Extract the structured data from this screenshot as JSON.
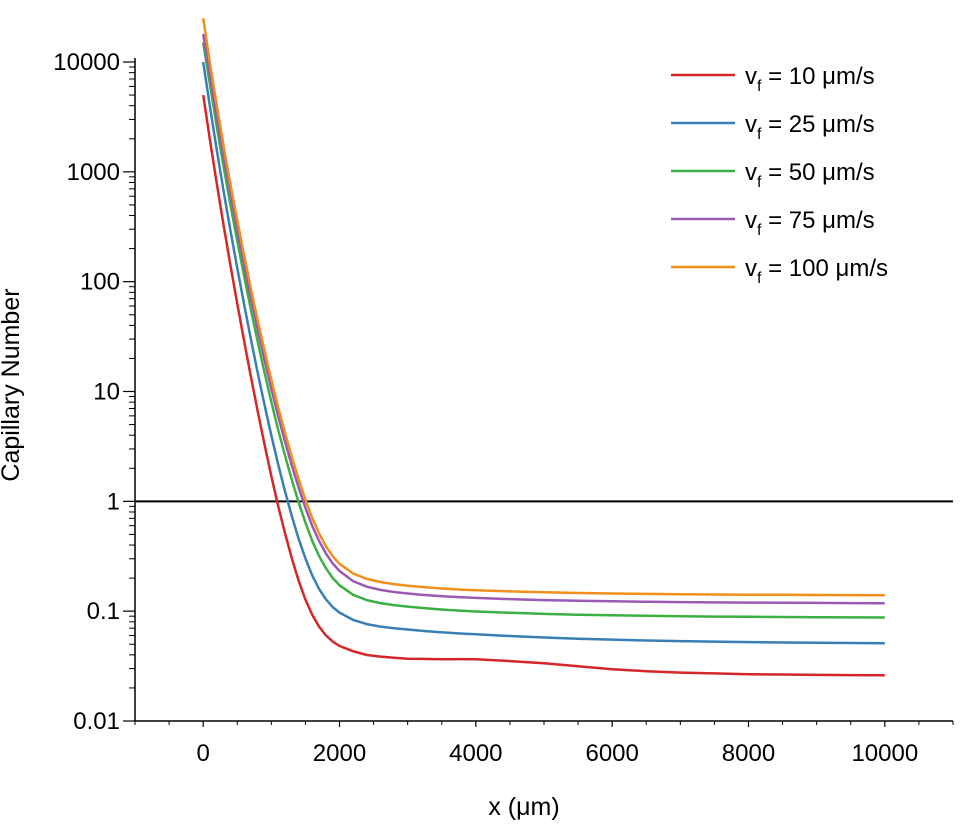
{
  "chart_data": {
    "type": "line",
    "title": "",
    "xlabel": "x (μm)",
    "ylabel": "Capillary Number",
    "xlim": [
      -1000,
      11000
    ],
    "ylim": [
      0.01,
      10000
    ],
    "yscale": "log",
    "grid": false,
    "legend_position": "top-right",
    "x_ticks": [
      0,
      2000,
      4000,
      6000,
      8000,
      10000
    ],
    "x_tick_labels": [
      "0",
      "2000",
      "4000",
      "6000",
      "8000",
      "10000"
    ],
    "y_ticks": [
      0.01,
      0.1,
      1,
      10,
      100,
      1000,
      10000
    ],
    "y_tick_labels": [
      "0.01",
      "0.1",
      "1",
      "10",
      "100",
      "1000",
      "10000"
    ],
    "reference_line": {
      "y": 1,
      "color": "#000000"
    },
    "series": [
      {
        "legend_main": "v",
        "legend_sub": "f",
        "legend_rest": " = 10 μm/s",
        "color": "#d62728",
        "x": [
          0,
          100,
          200,
          300,
          400,
          500,
          600,
          700,
          800,
          900,
          1000,
          1100,
          1200,
          1300,
          1400,
          1500,
          1600,
          1700,
          1800,
          1900,
          2000,
          2200,
          2400,
          2600,
          2800,
          3000,
          3200,
          3400,
          3600,
          3800,
          4000,
          4500,
          5000,
          5500,
          6000,
          6500,
          7000,
          7500,
          8000,
          8500,
          9000,
          9500,
          10000
        ],
        "y": [
          5000,
          1936,
          780,
          326,
          141.5,
          62.9,
          28.9,
          13.6,
          6.6,
          3.3,
          1.701,
          0.913,
          0.513,
          0.303,
          0.19,
          0.1276,
          0.0926,
          0.0724,
          0.0602,
          0.0529,
          0.0482,
          0.0432,
          0.0399,
          0.0386,
          0.0376,
          0.0369,
          0.0368,
          0.0366,
          0.0365,
          0.0366,
          0.0365,
          0.0351,
          0.0335,
          0.0315,
          0.0296,
          0.0284,
          0.0276,
          0.0271,
          0.0267,
          0.0265,
          0.0263,
          0.0262,
          0.0261
        ]
      },
      {
        "legend_main": "v",
        "legend_sub": "f",
        "legend_rest": " = 25 μm/s",
        "color": "#3a7fb4",
        "x": [
          0,
          100,
          200,
          300,
          400,
          500,
          600,
          700,
          800,
          900,
          1000,
          1100,
          1200,
          1300,
          1400,
          1500,
          1600,
          1700,
          1800,
          1900,
          2000,
          2200,
          2400,
          2600,
          2800,
          3000,
          3200,
          3400,
          3600,
          3800,
          4000,
          4500,
          5000,
          5500,
          6000,
          6500,
          7000,
          7500,
          8000,
          8500,
          9000,
          9500,
          10000
        ],
        "y": [
          10000,
          3900,
          1580,
          668,
          293,
          133,
          62.1,
          29.9,
          14.8,
          7.57,
          3.99,
          2.18,
          1.236,
          0.733,
          0.457,
          0.302,
          0.2119,
          0.1593,
          0.1283,
          0.109,
          0.0971,
          0.0832,
          0.0762,
          0.0724,
          0.0699,
          0.0681,
          0.0663,
          0.0648,
          0.0636,
          0.0625,
          0.0616,
          0.0594,
          0.0576,
          0.0562,
          0.0551,
          0.0541,
          0.0534,
          0.0528,
          0.0523,
          0.0519,
          0.0516,
          0.0513,
          0.0511
        ]
      },
      {
        "legend_main": "v",
        "legend_sub": "f",
        "legend_rest": " = 50 μm/s",
        "color": "#3cb043",
        "x": [
          0,
          100,
          200,
          300,
          400,
          500,
          600,
          700,
          800,
          900,
          1000,
          1100,
          1200,
          1300,
          1400,
          1500,
          1600,
          1700,
          1800,
          1900,
          2000,
          2200,
          2400,
          2600,
          2800,
          3000,
          3200,
          3400,
          3600,
          3800,
          4000,
          4500,
          5000,
          5500,
          6000,
          6500,
          7000,
          7500,
          8000,
          8500,
          9000,
          9500,
          10000
        ],
        "y": [
          15000,
          6200,
          2570,
          1112,
          502,
          234,
          112.8,
          55.6,
          28.4,
          14.9,
          8.07,
          4.51,
          2.61,
          1.57,
          0.983,
          0.64,
          0.437,
          0.318,
          0.246,
          0.2006,
          0.172,
          0.1408,
          0.1262,
          0.1185,
          0.1136,
          0.11,
          0.107,
          0.1046,
          0.1025,
          0.1008,
          0.0994,
          0.0966,
          0.0945,
          0.0929,
          0.0917,
          0.0907,
          0.0899,
          0.0893,
          0.0888,
          0.0884,
          0.0881,
          0.0878,
          0.0876
        ]
      },
      {
        "legend_main": "v",
        "legend_sub": "f",
        "legend_rest": " = 75 μm/s",
        "color": "#9b59b6",
        "x": [
          0,
          100,
          200,
          300,
          400,
          500,
          600,
          700,
          800,
          900,
          1000,
          1100,
          1200,
          1300,
          1400,
          1500,
          1600,
          1700,
          1800,
          1900,
          2000,
          2200,
          2400,
          2600,
          2800,
          3000,
          3200,
          3400,
          3600,
          3800,
          4000,
          4500,
          5000,
          5500,
          6000,
          6500,
          7000,
          7500,
          8000,
          8500,
          9000,
          9500,
          10000
        ],
        "y": [
          18000,
          7500,
          3150,
          1375,
          626,
          294,
          143.0,
          71.0,
          36.6,
          19.4,
          10.6,
          5.98,
          3.5,
          2.12,
          1.336,
          0.875,
          0.599,
          0.435,
          0.335,
          0.272,
          0.232,
          0.1877,
          0.1671,
          0.1563,
          0.1496,
          0.1449,
          0.1412,
          0.1382,
          0.1357,
          0.1337,
          0.132,
          0.1287,
          0.1262,
          0.1243,
          0.1229,
          0.1218,
          0.1209,
          0.1202,
          0.1196,
          0.1192,
          0.1188,
          0.1185,
          0.1183
        ]
      },
      {
        "legend_main": "v",
        "legend_sub": "f",
        "legend_rest": " = 100 μm/s",
        "color": "#f28e1c",
        "x": [
          0,
          100,
          200,
          300,
          400,
          500,
          600,
          700,
          800,
          900,
          1000,
          1100,
          1200,
          1300,
          1400,
          1500,
          1600,
          1700,
          1800,
          1900,
          2000,
          2200,
          2400,
          2600,
          2800,
          3000,
          3200,
          3400,
          3600,
          3800,
          4000,
          4500,
          5000,
          5500,
          6000,
          6500,
          7000,
          7500,
          8000,
          8500,
          9000,
          9500,
          10000
        ],
        "y": [
          25000,
          9700,
          4000,
          1720,
          772,
          360,
          174.0,
          86.1,
          44.3,
          23.5,
          12.8,
          7.22,
          4.22,
          2.55,
          1.598,
          1.04,
          0.707,
          0.509,
          0.39,
          0.316,
          0.27,
          0.2202,
          0.1967,
          0.1842,
          0.1764,
          0.1707,
          0.1662,
          0.1625,
          0.1595,
          0.157,
          0.155,
          0.1512,
          0.1484,
          0.1463,
          0.1448,
          0.1436,
          0.1427,
          0.1419,
          0.1413,
          0.1408,
          0.1404,
          0.1401,
          0.1398
        ]
      }
    ]
  }
}
